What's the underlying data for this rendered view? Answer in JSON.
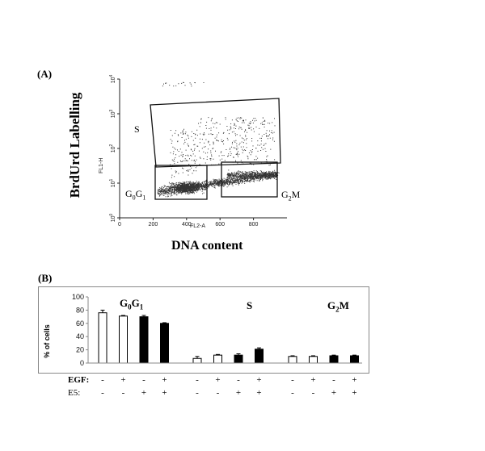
{
  "panelA": {
    "label": "(A)",
    "ylabel": "BrdUrd Labelling",
    "xlabel": "DNA content",
    "axis_y_name": "FL1-H",
    "axis_x_name": "FL2-A",
    "gates": {
      "S": "S",
      "G0G1_main": "G",
      "G0G1_sub0": "0",
      "G0G1_mid": "G",
      "G0G1_sub1": "1",
      "G2M_main": "G",
      "G2M_sub": "2",
      "G2M_end": "M"
    }
  },
  "panelB": {
    "label": "(B)",
    "ylabel": "% of cells",
    "group_labels": {
      "g0g1_a": "G",
      "g0g1_s0": "0",
      "g0g1_b": "G",
      "g0g1_s1": "1",
      "s": "S",
      "g2m_a": "G",
      "g2m_s": "2",
      "g2m_b": "M"
    },
    "conditions": [
      {
        "name": "EGF:",
        "values": [
          "-",
          "+",
          "-",
          "+",
          "-",
          "+",
          "-",
          "+",
          "-",
          "+",
          "-",
          "+"
        ],
        "bold": true
      },
      {
        "name": "E5:",
        "values": [
          "-",
          "-",
          "+",
          "+",
          "-",
          "-",
          "+",
          "+",
          "-",
          "-",
          "+",
          "+"
        ],
        "bold": false
      }
    ]
  },
  "chart_data": [
    {
      "type": "scatter",
      "title": "",
      "xlabel": "DNA content",
      "ylabel": "BrdUrd Labelling",
      "x_ticks": [
        "0",
        "200",
        "400",
        "600",
        "800"
      ],
      "y_ticks": [
        "10^0",
        "10^1",
        "10^2",
        "10^3",
        "10^4"
      ],
      "xlim": [
        0,
        1000
      ],
      "ylim_log10": [
        0,
        4
      ],
      "gates": [
        "S",
        "G0G1",
        "G2M"
      ]
    },
    {
      "type": "bar",
      "xlabel": "",
      "ylabel": "% of cells",
      "ylim": [
        0,
        100
      ],
      "y_ticks": [
        0,
        20,
        40,
        60,
        80,
        100
      ],
      "grid": false,
      "groups": [
        "G0G1",
        "S",
        "G2M"
      ],
      "series": [
        {
          "egf": "-",
          "e5": "-",
          "fill": "white",
          "values": [
            76,
            7,
            10
          ],
          "errors": [
            4,
            3,
            1
          ]
        },
        {
          "egf": "+",
          "e5": "-",
          "fill": "white",
          "values": [
            71,
            12,
            10
          ],
          "errors": [
            1,
            1,
            1
          ]
        },
        {
          "egf": "-",
          "e5": "+",
          "fill": "black",
          "values": [
            70,
            12,
            11
          ],
          "errors": [
            2,
            2,
            1
          ]
        },
        {
          "egf": "+",
          "e5": "+",
          "fill": "black",
          "values": [
            60,
            21,
            11
          ],
          "errors": [
            1,
            2,
            1
          ]
        }
      ]
    }
  ]
}
